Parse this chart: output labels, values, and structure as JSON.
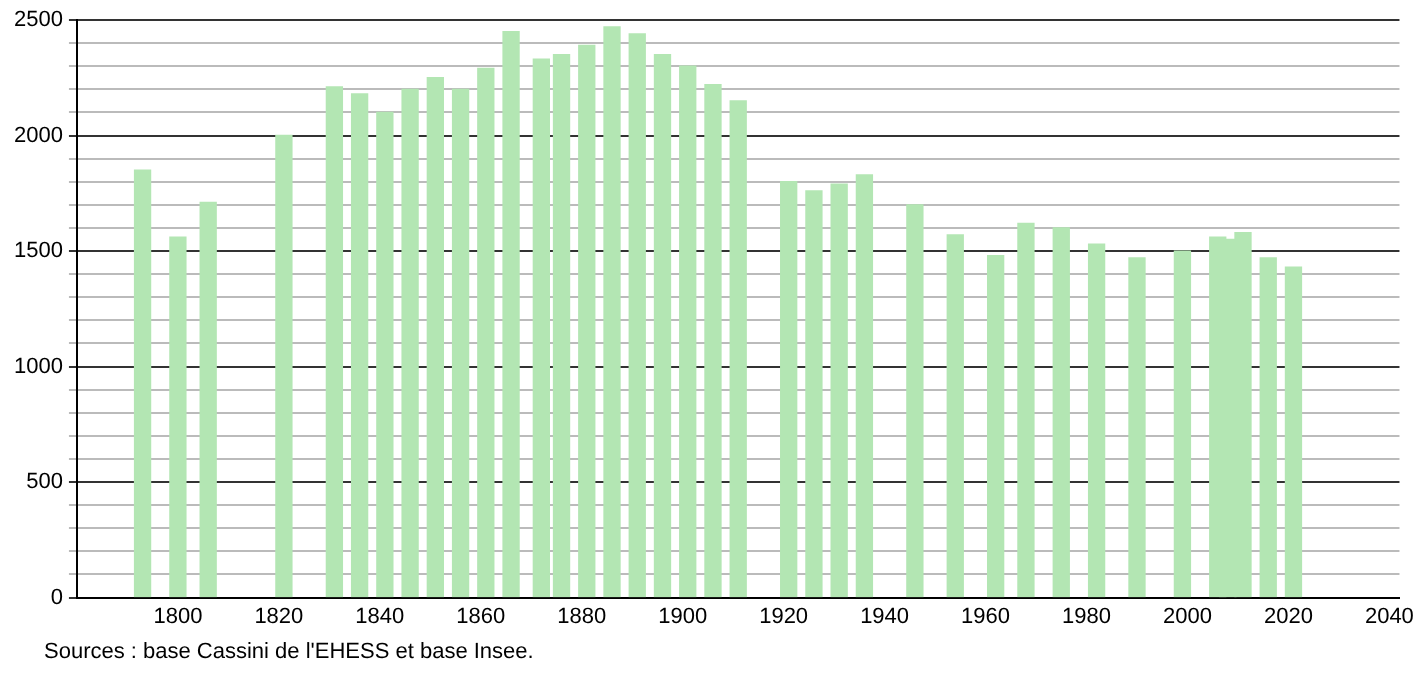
{
  "chart_data": {
    "type": "bar",
    "color": "#b3e6b3",
    "x": [
      1793,
      1800,
      1806,
      1821,
      1831,
      1836,
      1841,
      1846,
      1851,
      1856,
      1861,
      1866,
      1872,
      1876,
      1881,
      1886,
      1891,
      1896,
      1901,
      1906,
      1911,
      1921,
      1926,
      1931,
      1936,
      1946,
      1954,
      1962,
      1968,
      1975,
      1982,
      1990,
      1999,
      2006,
      2008,
      2011,
      2016,
      2021
    ],
    "values": [
      1850,
      1560,
      1710,
      2000,
      2210,
      2180,
      2100,
      2200,
      2250,
      2200,
      2290,
      2450,
      2330,
      2350,
      2390,
      2470,
      2440,
      2350,
      2300,
      2220,
      2150,
      1800,
      1760,
      1790,
      1830,
      1700,
      1570,
      1480,
      1620,
      1600,
      1530,
      1470,
      1500,
      1560,
      1550,
      1580,
      1470,
      1430
    ],
    "xlim": [
      1780,
      2042
    ],
    "xticks": [
      1800,
      1820,
      1840,
      1860,
      1880,
      1900,
      1920,
      1940,
      1960,
      1980,
      2000,
      2020,
      2040
    ],
    "ylim": [
      0,
      2500
    ],
    "yticks": [
      0,
      {
        "value": 100,
        "label": null
      },
      {
        "value": 200,
        "label": null
      },
      {
        "value": 300,
        "label": null
      },
      {
        "value": 400,
        "label": null
      },
      500,
      {
        "value": 600,
        "label": null
      },
      {
        "value": 700,
        "label": null
      },
      {
        "value": 800,
        "label": null
      },
      {
        "value": 900,
        "label": null
      },
      1000,
      {
        "value": 1100,
        "label": null
      },
      {
        "value": 1200,
        "label": null
      },
      {
        "value": 1300,
        "label": null
      },
      {
        "value": 1400,
        "label": null
      },
      1500,
      {
        "value": 1600,
        "label": null
      },
      {
        "value": 1700,
        "label": null
      },
      {
        "value": 1800,
        "label": null
      },
      {
        "value": 1900,
        "label": null
      },
      2000,
      {
        "value": 2100,
        "label": null
      },
      {
        "value": 2200,
        "label": null
      },
      {
        "value": 2300,
        "label": null
      },
      {
        "value": 2400,
        "label": null
      },
      2500
    ],
    "grid": "y",
    "annotations": [
      "Sources : base Cassini de l'EHESS et base Insee."
    ]
  }
}
